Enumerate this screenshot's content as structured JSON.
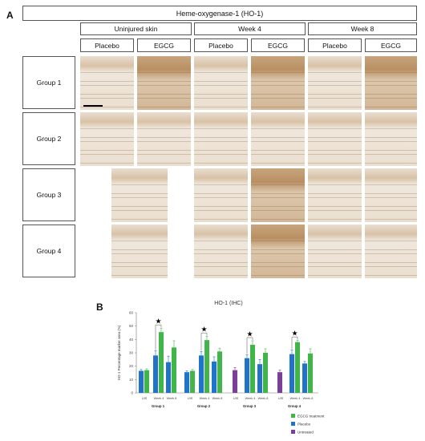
{
  "panel_a": {
    "letter": "A",
    "header": "Heme-oxygenase-1 (HO-1)",
    "columns": {
      "uninjured": "Uninjured skin",
      "week4": "Week 4",
      "week8": "Week 8"
    },
    "treatments": [
      "Placebo",
      "EGCG",
      "Placebo",
      "EGCG",
      "Placebo",
      "EGCG"
    ],
    "groups": [
      "Group 1",
      "Group 2",
      "Group 3",
      "Group 4"
    ]
  },
  "panel_b": {
    "letter": "B",
    "significance_marker": "★"
  },
  "colors": {
    "egcg": "#3fb54a",
    "placebo": "#1f73c9",
    "untreated": "#7a3f98"
  },
  "chart_data": {
    "type": "bar",
    "title": "HO-1 (IHC)",
    "ylabel": "HO-1 Percentage marker area (%)",
    "ylim": [
      0,
      60
    ],
    "yticks": [
      0,
      10,
      20,
      30,
      40,
      50,
      60
    ],
    "grid": false,
    "legend_position": "bottom-right",
    "legend": [
      "EGCG treatment",
      "Placebo",
      "Untreated"
    ],
    "groups": [
      {
        "name": "Group 1",
        "ticks": [
          "UIS",
          "Week 4",
          "Week 8"
        ],
        "bars": [
          {
            "tick": "UIS",
            "series": "Placebo",
            "value": 16.5,
            "err": 1.0
          },
          {
            "tick": "UIS",
            "series": "EGCG treatment",
            "value": 17,
            "err": 1.0
          },
          {
            "tick": "Week 4",
            "series": "Placebo",
            "value": 28,
            "err": 3.5
          },
          {
            "tick": "Week 4",
            "series": "EGCG treatment",
            "value": 45.5,
            "err": 3.0
          },
          {
            "tick": "Week 8",
            "series": "Placebo",
            "value": 23,
            "err": 4.5
          },
          {
            "tick": "Week 8",
            "series": "EGCG treatment",
            "value": 34,
            "err": 5.0
          }
        ],
        "significant": true
      },
      {
        "name": "Group 2",
        "ticks": [
          "UIS",
          "Week 4",
          "Week 8"
        ],
        "bars": [
          {
            "tick": "UIS",
            "series": "Placebo",
            "value": 15.5,
            "err": 1.0
          },
          {
            "tick": "UIS",
            "series": "EGCG treatment",
            "value": 16.5,
            "err": 1.0
          },
          {
            "tick": "Week 4",
            "series": "Placebo",
            "value": 28,
            "err": 3.0
          },
          {
            "tick": "Week 4",
            "series": "EGCG treatment",
            "value": 39.5,
            "err": 3.0
          },
          {
            "tick": "Week 8",
            "series": "Placebo",
            "value": 23.5,
            "err": 3.5
          },
          {
            "tick": "Week 8",
            "series": "EGCG treatment",
            "value": 31,
            "err": 2.5
          }
        ],
        "significant": true
      },
      {
        "name": "Group 3",
        "ticks": [
          "UIS",
          "Week 4",
          "Week 8"
        ],
        "bars": [
          {
            "tick": "UIS",
            "series": "Untreated",
            "value": 17,
            "err": 2.0
          },
          {
            "tick": "Week 4",
            "series": "Placebo",
            "value": 26,
            "err": 2.5
          },
          {
            "tick": "Week 4",
            "series": "EGCG treatment",
            "value": 36,
            "err": 3.0
          },
          {
            "tick": "Week 8",
            "series": "Placebo",
            "value": 21.5,
            "err": 3.5
          },
          {
            "tick": "Week 8",
            "series": "EGCG treatment",
            "value": 30,
            "err": 3.0
          }
        ],
        "significant": true
      },
      {
        "name": "Group 4",
        "ticks": [
          "UIS",
          "Week 4",
          "Week 8"
        ],
        "bars": [
          {
            "tick": "UIS",
            "series": "Untreated",
            "value": 15.5,
            "err": 1.5
          },
          {
            "tick": "Week 4",
            "series": "Placebo",
            "value": 29,
            "err": 3.0
          },
          {
            "tick": "Week 4",
            "series": "EGCG treatment",
            "value": 38,
            "err": 1.5
          },
          {
            "tick": "Week 8",
            "series": "Placebo",
            "value": 22,
            "err": 1.5
          },
          {
            "tick": "Week 8",
            "series": "EGCG treatment",
            "value": 29.5,
            "err": 3.5
          }
        ],
        "significant": true
      }
    ]
  }
}
